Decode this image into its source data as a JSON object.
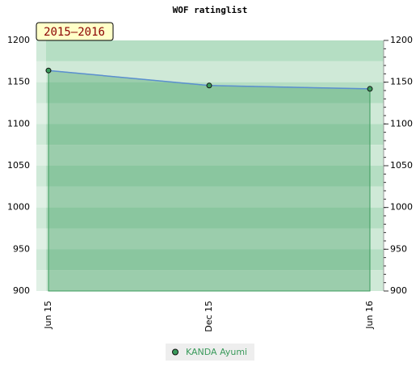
{
  "chart_data": {
    "type": "line",
    "title": "WOF ratinglist",
    "annotation": "2015–2016",
    "categories": [
      "Jun 15",
      "Dec 15",
      "Jun 16"
    ],
    "series": [
      {
        "name": "KANDA Ayumi",
        "color": "#3a9a5b",
        "values": [
          1164,
          1146,
          1142
        ]
      }
    ],
    "ylim": [
      900,
      1200
    ],
    "yticks": [
      900,
      950,
      1000,
      1050,
      1100,
      1150,
      1200
    ],
    "grid": false
  }
}
